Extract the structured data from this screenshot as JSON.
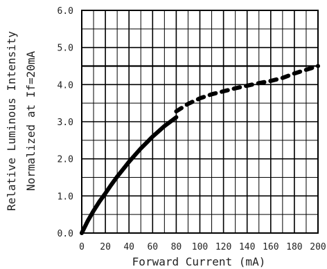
{
  "chart_data": {
    "type": "line",
    "title": "",
    "xlabel": "Forward Current (mA)",
    "ylabel": [
      "Relative Luminous Intensity",
      "Normalized at If=20mA"
    ],
    "xlim": [
      0,
      200
    ],
    "ylim": [
      0,
      6
    ],
    "x_ticks": [
      "0",
      "20",
      "40",
      "60",
      "80",
      "100",
      "120",
      "140",
      "160",
      "180",
      "200"
    ],
    "y_ticks": [
      "0.0",
      "1.0",
      "2.0",
      "3.0",
      "4.0",
      "5.0",
      "6.0"
    ],
    "grid": true,
    "minor_grid_x_step": 10,
    "minor_grid_y_step": 0.5,
    "reference_line_y": 4.5,
    "series": [
      {
        "style": "solid",
        "color": "#000000",
        "x": [
          0,
          5,
          10,
          15,
          20,
          25,
          30,
          35,
          40,
          45,
          50,
          55,
          60,
          65,
          70,
          75,
          80
        ],
        "y": [
          0.0,
          0.32,
          0.6,
          0.85,
          1.07,
          1.3,
          1.52,
          1.72,
          1.92,
          2.1,
          2.28,
          2.44,
          2.6,
          2.74,
          2.88,
          3.0,
          3.12
        ]
      },
      {
        "style": "dashed",
        "color": "#000000",
        "x": [
          80,
          90,
          100,
          110,
          120,
          130,
          140,
          150,
          160,
          170,
          180,
          190,
          200
        ],
        "y": [
          3.28,
          3.48,
          3.63,
          3.74,
          3.82,
          3.9,
          3.97,
          4.04,
          4.1,
          4.18,
          4.3,
          4.4,
          4.5
        ]
      }
    ]
  }
}
